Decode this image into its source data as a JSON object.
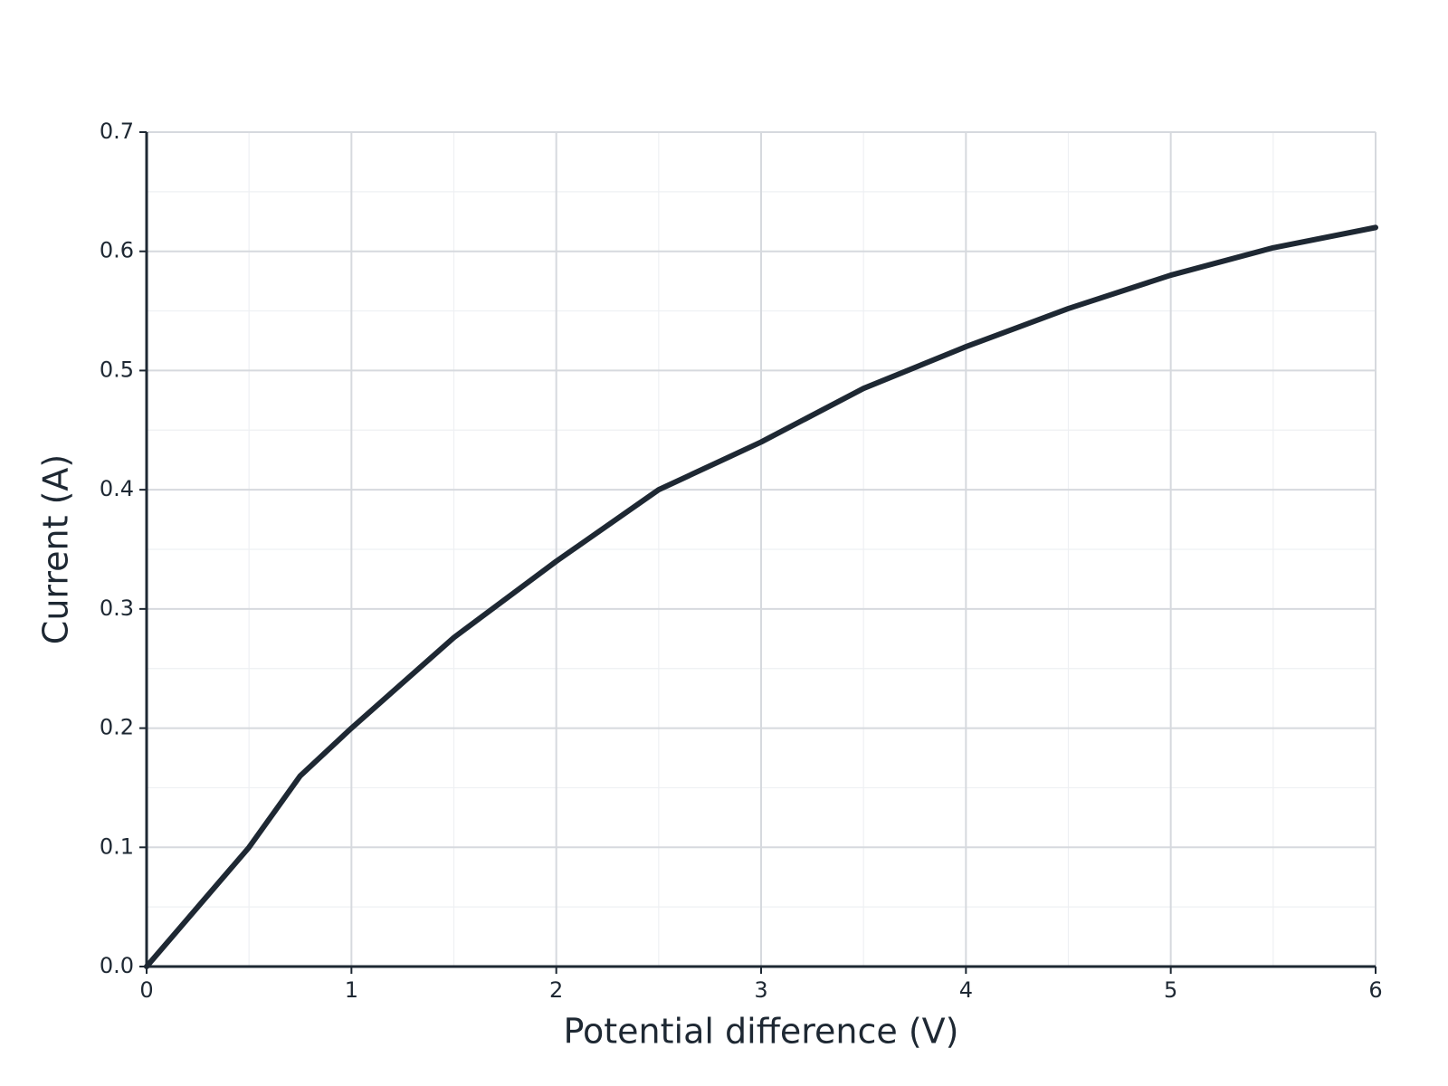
{
  "chart_data": {
    "type": "line",
    "x_label": "Potential difference (V)",
    "y_label": "Current (A)",
    "x": [
      0,
      0.25,
      0.5,
      0.75,
      1,
      1.5,
      2,
      2.5,
      3,
      3.5,
      4,
      4.5,
      5,
      5.5,
      6
    ],
    "values": [
      0,
      0.05,
      0.1,
      0.16,
      0.2,
      0.276,
      0.34,
      0.4,
      0.44,
      0.485,
      0.52,
      0.552,
      0.58,
      0.603,
      0.62
    ],
    "color": "#1e2833",
    "xlim": [
      0,
      6
    ],
    "xticks": [
      0,
      1,
      2,
      3,
      4,
      5,
      6
    ],
    "ylim": [
      0,
      0.7
    ],
    "yticks": [
      {
        "value": 0,
        "label": "0.0"
      },
      0.1,
      0.2,
      0.3,
      0.4,
      0.5,
      0.6,
      0.7
    ],
    "grid": true,
    "minor_grid": true
  }
}
